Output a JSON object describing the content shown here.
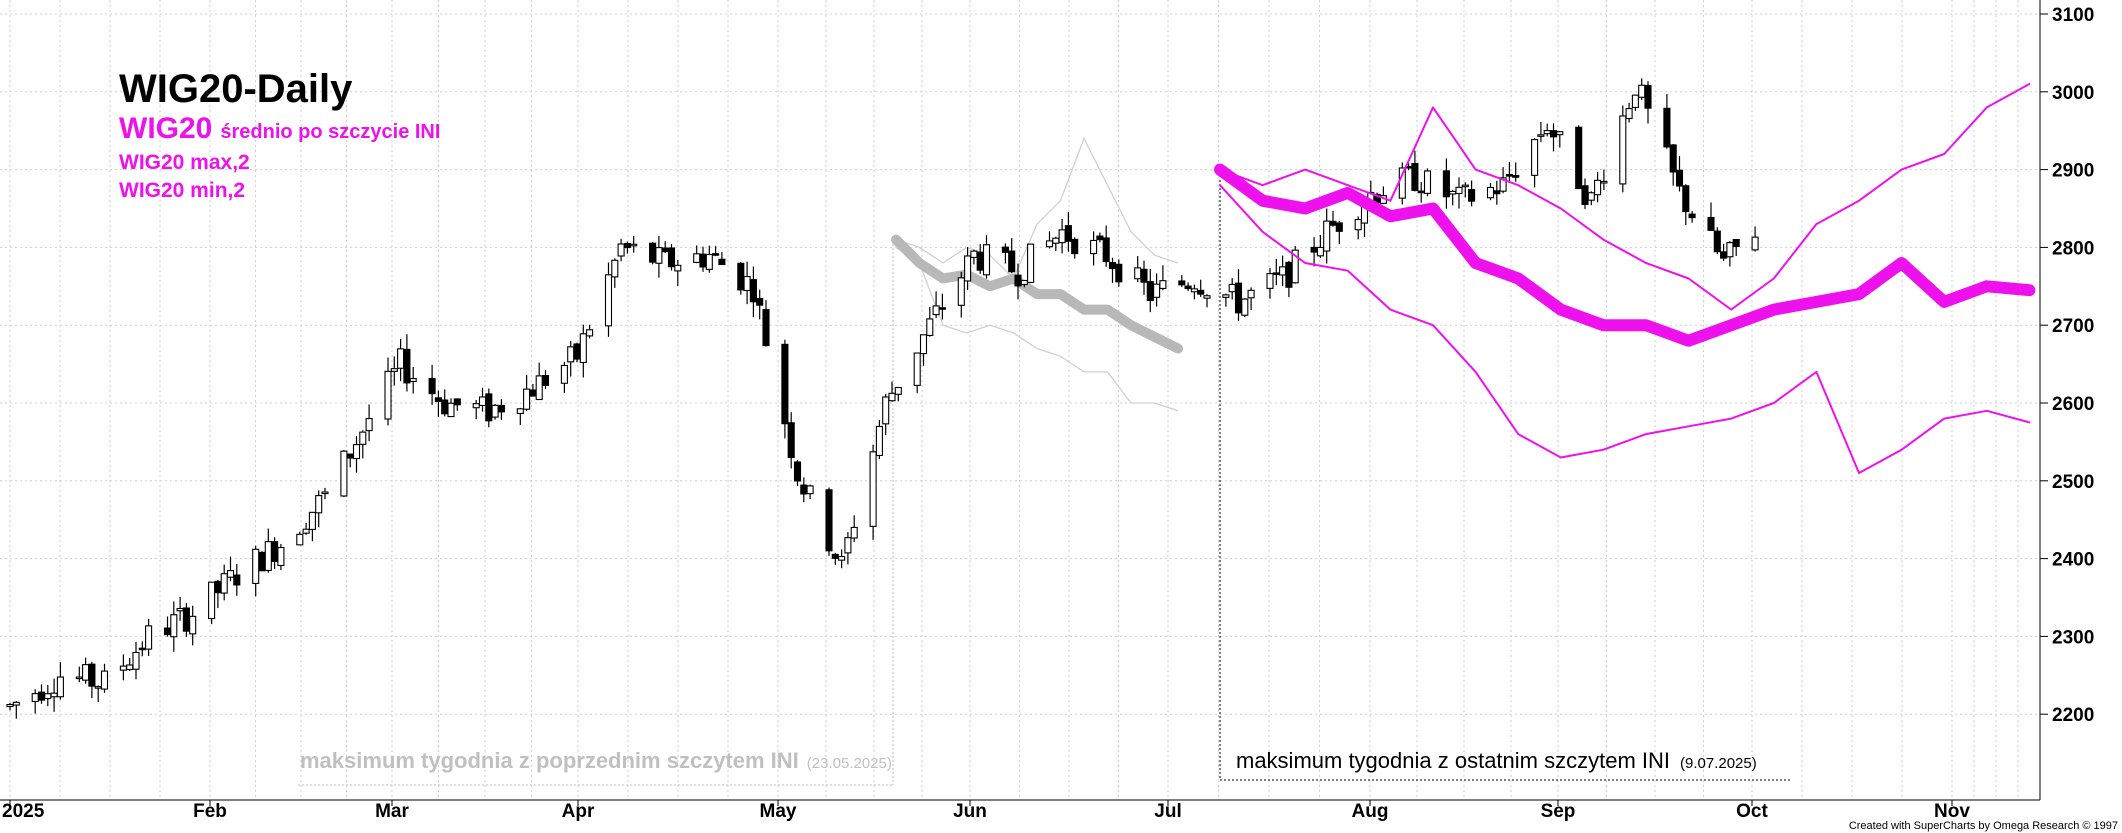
{
  "chart_data": {
    "type": "candlestick",
    "title": "WIG20-Daily",
    "legend": [
      {
        "big": "WIG20",
        "small": "średnio po szczycie INI",
        "color": "#ee11ee"
      },
      {
        "big": "",
        "small": "WIG20 max,2",
        "color": "#ee11ee"
      },
      {
        "big": "",
        "small": "WIG20 min,2",
        "color": "#ee11ee"
      }
    ],
    "x_labels": [
      "2025",
      "Feb",
      "Mar",
      "Apr",
      "May",
      "Jun",
      "Jul",
      "Aug",
      "Sep",
      "Oct",
      "Nov"
    ],
    "ylim": [
      2100,
      3100
    ],
    "y_ticks": [
      2200,
      2300,
      2400,
      2500,
      2600,
      2700,
      2800,
      2900,
      3000,
      3100
    ],
    "grid": true,
    "annotations": [
      {
        "text": "maksimum tygodnia z poprzednim szczytem INI",
        "date": "(23.05.2025)",
        "color": "#c0c0c0"
      },
      {
        "text": "maksimum tygodnia z ostatnim szczytem INI",
        "date": "(9.07.2025)",
        "color": "#000000"
      }
    ],
    "credit": "Created with SuperCharts by Omega Research © 1997",
    "close_series": [
      {
        "date": "2025-01-02",
        "value": 2210
      },
      {
        "date": "2025-01-10",
        "value": 2250
      },
      {
        "date": "2025-01-17",
        "value": 2240
      },
      {
        "date": "2025-01-24",
        "value": 2300
      },
      {
        "date": "2025-01-31",
        "value": 2330
      },
      {
        "date": "2025-02-07",
        "value": 2380
      },
      {
        "date": "2025-02-14",
        "value": 2420
      },
      {
        "date": "2025-02-21",
        "value": 2480
      },
      {
        "date": "2025-02-28",
        "value": 2580
      },
      {
        "date": "2025-03-05",
        "value": 2650
      },
      {
        "date": "2025-03-12",
        "value": 2600
      },
      {
        "date": "2025-03-19",
        "value": 2590
      },
      {
        "date": "2025-03-26",
        "value": 2620
      },
      {
        "date": "2025-04-02",
        "value": 2660
      },
      {
        "date": "2025-04-09",
        "value": 2800
      },
      {
        "date": "2025-04-16",
        "value": 2780
      },
      {
        "date": "2025-04-23",
        "value": 2790
      },
      {
        "date": "2025-04-30",
        "value": 2750
      },
      {
        "date": "2025-05-07",
        "value": 2510
      },
      {
        "date": "2025-05-14",
        "value": 2390
      },
      {
        "date": "2025-05-21",
        "value": 2600
      },
      {
        "date": "2025-05-28",
        "value": 2700
      },
      {
        "date": "2025-06-04",
        "value": 2790
      },
      {
        "date": "2025-06-11",
        "value": 2770
      },
      {
        "date": "2025-06-18",
        "value": 2820
      },
      {
        "date": "2025-06-25",
        "value": 2790
      },
      {
        "date": "2025-07-02",
        "value": 2740
      },
      {
        "date": "2025-07-09",
        "value": 2760
      },
      {
        "date": "2025-07-16",
        "value": 2730
      },
      {
        "date": "2025-07-23",
        "value": 2760
      },
      {
        "date": "2025-07-30",
        "value": 2820
      },
      {
        "date": "2025-08-06",
        "value": 2870
      },
      {
        "date": "2025-08-13",
        "value": 2890
      },
      {
        "date": "2025-08-20",
        "value": 2860
      },
      {
        "date": "2025-08-27",
        "value": 2880
      },
      {
        "date": "2025-09-03",
        "value": 2960
      },
      {
        "date": "2025-09-10",
        "value": 2860
      },
      {
        "date": "2025-09-17",
        "value": 3010
      },
      {
        "date": "2025-09-24",
        "value": 2870
      },
      {
        "date": "2025-10-01",
        "value": 2780
      },
      {
        "date": "2025-10-08",
        "value": 2840
      },
      {
        "date": "2025-10-15",
        "value": 2810
      },
      {
        "date": "2025-10-22",
        "value": 2860
      }
    ],
    "series": [
      {
        "name": "WIG20 średnio po szczycie INI",
        "values": [
          2900,
          2860,
          2850,
          2870,
          2840,
          2850,
          2780,
          2760,
          2720,
          2700,
          2700,
          2680,
          2700,
          2720,
          2730,
          2740,
          2780,
          2730,
          2750,
          2745
        ]
      },
      {
        "name": "WIG20 max,2",
        "values": [
          2900,
          2880,
          2900,
          2880,
          2860,
          2980,
          2900,
          2880,
          2850,
          2810,
          2780,
          2760,
          2720,
          2760,
          2830,
          2860,
          2900,
          2920,
          2980,
          3010
        ]
      },
      {
        "name": "WIG20 min,2",
        "values": [
          2880,
          2820,
          2780,
          2770,
          2720,
          2700,
          2640,
          2560,
          2530,
          2540,
          2560,
          2570,
          2580,
          2600,
          2640,
          2510,
          2540,
          2580,
          2590,
          2575
        ]
      }
    ]
  }
}
